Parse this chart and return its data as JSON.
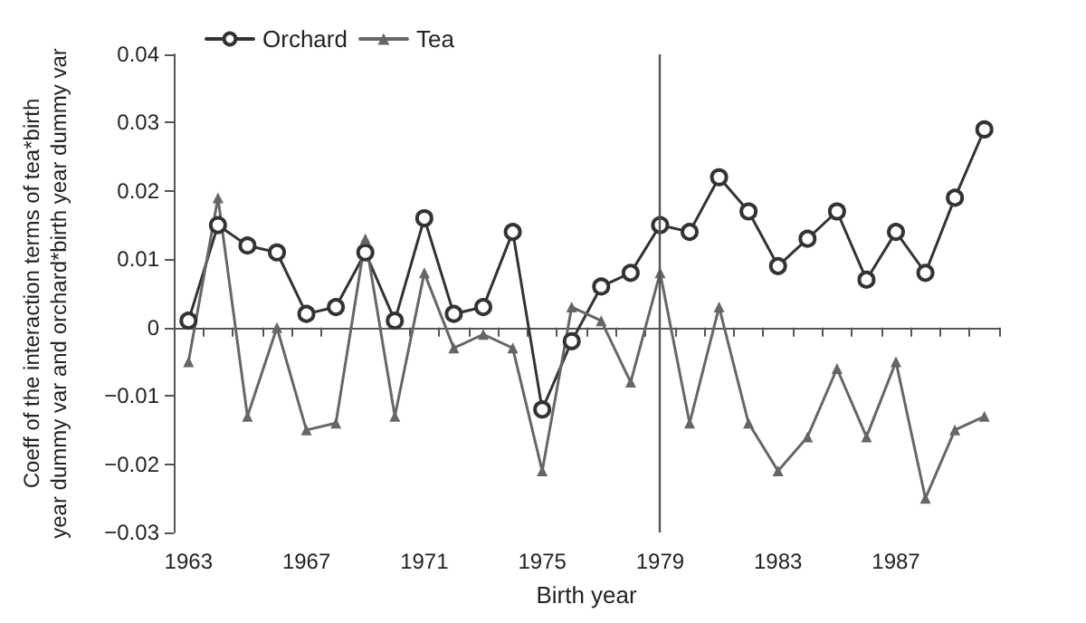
{
  "chart_data": {
    "type": "line",
    "xlabel": "Birth year",
    "ylabel": "Coeff of the interaction terms of tea*birth year dummy var and orchard*birth year dummy var",
    "categories": [
      "1963",
      null,
      null,
      null,
      "1967",
      null,
      null,
      null,
      "1971",
      null,
      null,
      null,
      "1975",
      null,
      null,
      null,
      "1979",
      null,
      null,
      null,
      "1983",
      null,
      null,
      null,
      "1987",
      null,
      null,
      null
    ],
    "series": [
      {
        "name": "Orchard",
        "color": "#333333",
        "marker": "circle",
        "values": [
          0.001,
          0.015,
          0.012,
          0.011,
          0.002,
          0.003,
          0.011,
          0.001,
          0.016,
          0.002,
          0.003,
          0.014,
          -0.012,
          -0.002,
          0.006,
          0.008,
          0.015,
          0.014,
          0.022,
          0.017,
          0.009,
          0.013,
          0.017,
          0.007,
          0.014,
          0.008,
          0.019,
          0.029
        ]
      },
      {
        "name": "Tea",
        "color": "#666666",
        "marker": "triangle",
        "values": [
          -0.005,
          0.019,
          -0.013,
          0.0,
          -0.015,
          -0.014,
          0.013,
          -0.013,
          0.008,
          -0.003,
          -0.001,
          -0.003,
          -0.021,
          0.003,
          0.001,
          -0.008,
          0.008,
          -0.014,
          0.003,
          -0.014,
          -0.021,
          -0.016,
          -0.006,
          -0.016,
          -0.005,
          -0.025,
          -0.015,
          -0.013
        ]
      }
    ],
    "ylim": [
      -0.03,
      0.04
    ],
    "yticks": [
      {
        "value": -0.03,
        "label": "−0.03"
      },
      {
        "value": -0.02,
        "label": "−0.02"
      },
      {
        "value": -0.01,
        "label": "−0.01"
      },
      0,
      0.01,
      0.02,
      0.03,
      0.04
    ],
    "ref_lines": [
      {
        "axis": "x",
        "value": "1979",
        "color": "#555555"
      }
    ],
    "grid": false,
    "legend": "top left",
    "line_style": "solid"
  }
}
